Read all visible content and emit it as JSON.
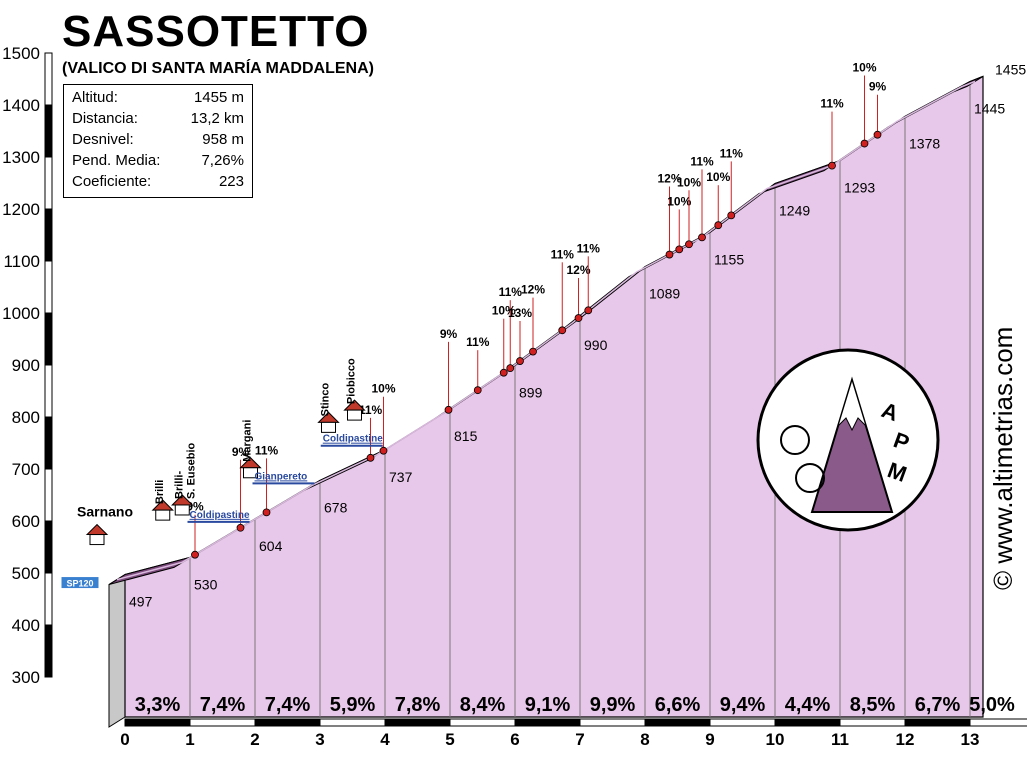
{
  "header": {
    "title": "SASSOTETTO",
    "subtitle": "(VALICO DI SANTA MARÍA MADDALENA)"
  },
  "info_box": [
    {
      "label": "Altitud:",
      "value": "1455 m"
    },
    {
      "label": "Distancia:",
      "value": "13,2 km"
    },
    {
      "label": "Desnivel:",
      "value": "958 m"
    },
    {
      "label": "Pend. Media:",
      "value": "7,26%"
    },
    {
      "label": "Coeficiente:",
      "value": "223"
    }
  ],
  "copyright": "© www.altimetrias.com",
  "logo_text": [
    "A",
    "P",
    "M"
  ],
  "places": [
    {
      "name": "Sarnano",
      "km": 0
    },
    {
      "name": "Brilli",
      "km": 0.55
    },
    {
      "name": "Brilli-\nS. Eusebio",
      "km": 0.85
    },
    {
      "name": "Margani",
      "km": 1.9
    },
    {
      "name": "Stinco",
      "km": 3.1
    },
    {
      "name": "Piobicco",
      "km": 3.5
    }
  ],
  "road_labels": [
    {
      "text": "SP120",
      "km": 0
    },
    {
      "text": "Coldipastine",
      "km": 1.3
    },
    {
      "text": "Gianpereto",
      "km": 2.3
    },
    {
      "text": "Coldipastine",
      "km": 3.35
    }
  ],
  "colors": {
    "profile_fill": "#e8c8ea",
    "road": "#7a4a7a",
    "ground": "#c8c8c8",
    "axis": "#000000",
    "marker": "#d02020",
    "road_badge": "#3a80d0"
  },
  "chart_data": {
    "type": "area",
    "xlabel": "",
    "ylabel": "",
    "xlim": [
      0,
      13.2
    ],
    "ylim": [
      300,
      1500
    ],
    "x_ticks": [
      0,
      1,
      2,
      3,
      4,
      5,
      6,
      7,
      8,
      9,
      10,
      11,
      12,
      13
    ],
    "y_ticks": [
      300,
      400,
      500,
      600,
      700,
      800,
      900,
      1000,
      1100,
      1200,
      1300,
      1400,
      1500
    ],
    "profile": [
      {
        "km": 0,
        "alt": 497
      },
      {
        "km": 1,
        "alt": 530
      },
      {
        "km": 2,
        "alt": 604
      },
      {
        "km": 3,
        "alt": 678
      },
      {
        "km": 4,
        "alt": 737
      },
      {
        "km": 5,
        "alt": 815
      },
      {
        "km": 6,
        "alt": 899
      },
      {
        "km": 7,
        "alt": 990
      },
      {
        "km": 8,
        "alt": 1089
      },
      {
        "km": 9,
        "alt": 1155
      },
      {
        "km": 10,
        "alt": 1249
      },
      {
        "km": 11,
        "alt": 1293
      },
      {
        "km": 12,
        "alt": 1378
      },
      {
        "km": 13,
        "alt": 1445
      },
      {
        "km": 13.2,
        "alt": 1455
      }
    ],
    "km_gradients": [
      "3,3%",
      "7,4%",
      "7,4%",
      "5,9%",
      "7,8%",
      "8,4%",
      "9,1%",
      "9,9%",
      "6,6%",
      "9,4%",
      "4,4%",
      "8,5%",
      "6,7%",
      "5,0%"
    ],
    "altitude_labels": [
      "497",
      "530",
      "604",
      "678",
      "737",
      "815",
      "899",
      "990",
      "1089",
      "1155",
      "1249",
      "1293",
      "1378",
      "1445",
      "1455"
    ],
    "steep_markers": [
      {
        "km": 1.2,
        "text": "9%"
      },
      {
        "km": 2.3,
        "text": "11%"
      },
      {
        "km": 1.9,
        "text": "9%"
      },
      {
        "km": 3.9,
        "text": "11%"
      },
      {
        "km": 4.1,
        "text": "10%"
      },
      {
        "km": 5.1,
        "text": "9%"
      },
      {
        "km": 5.55,
        "text": "11%"
      },
      {
        "km": 5.95,
        "text": "10%"
      },
      {
        "km": 6.05,
        "text": "11%"
      },
      {
        "km": 6.2,
        "text": "13%"
      },
      {
        "km": 6.4,
        "text": "12%"
      },
      {
        "km": 6.85,
        "text": "11%"
      },
      {
        "km": 7.1,
        "text": "12%"
      },
      {
        "km": 7.25,
        "text": "11%"
      },
      {
        "km": 8.5,
        "text": "12%"
      },
      {
        "km": 8.65,
        "text": "10%"
      },
      {
        "km": 8.8,
        "text": "10%"
      },
      {
        "km": 9.0,
        "text": "11%"
      },
      {
        "km": 9.25,
        "text": "10%"
      },
      {
        "km": 9.45,
        "text": "11%"
      },
      {
        "km": 11.5,
        "text": "10%"
      },
      {
        "km": 11.7,
        "text": "9%"
      },
      {
        "km": 11.0,
        "text": "11%"
      }
    ]
  }
}
